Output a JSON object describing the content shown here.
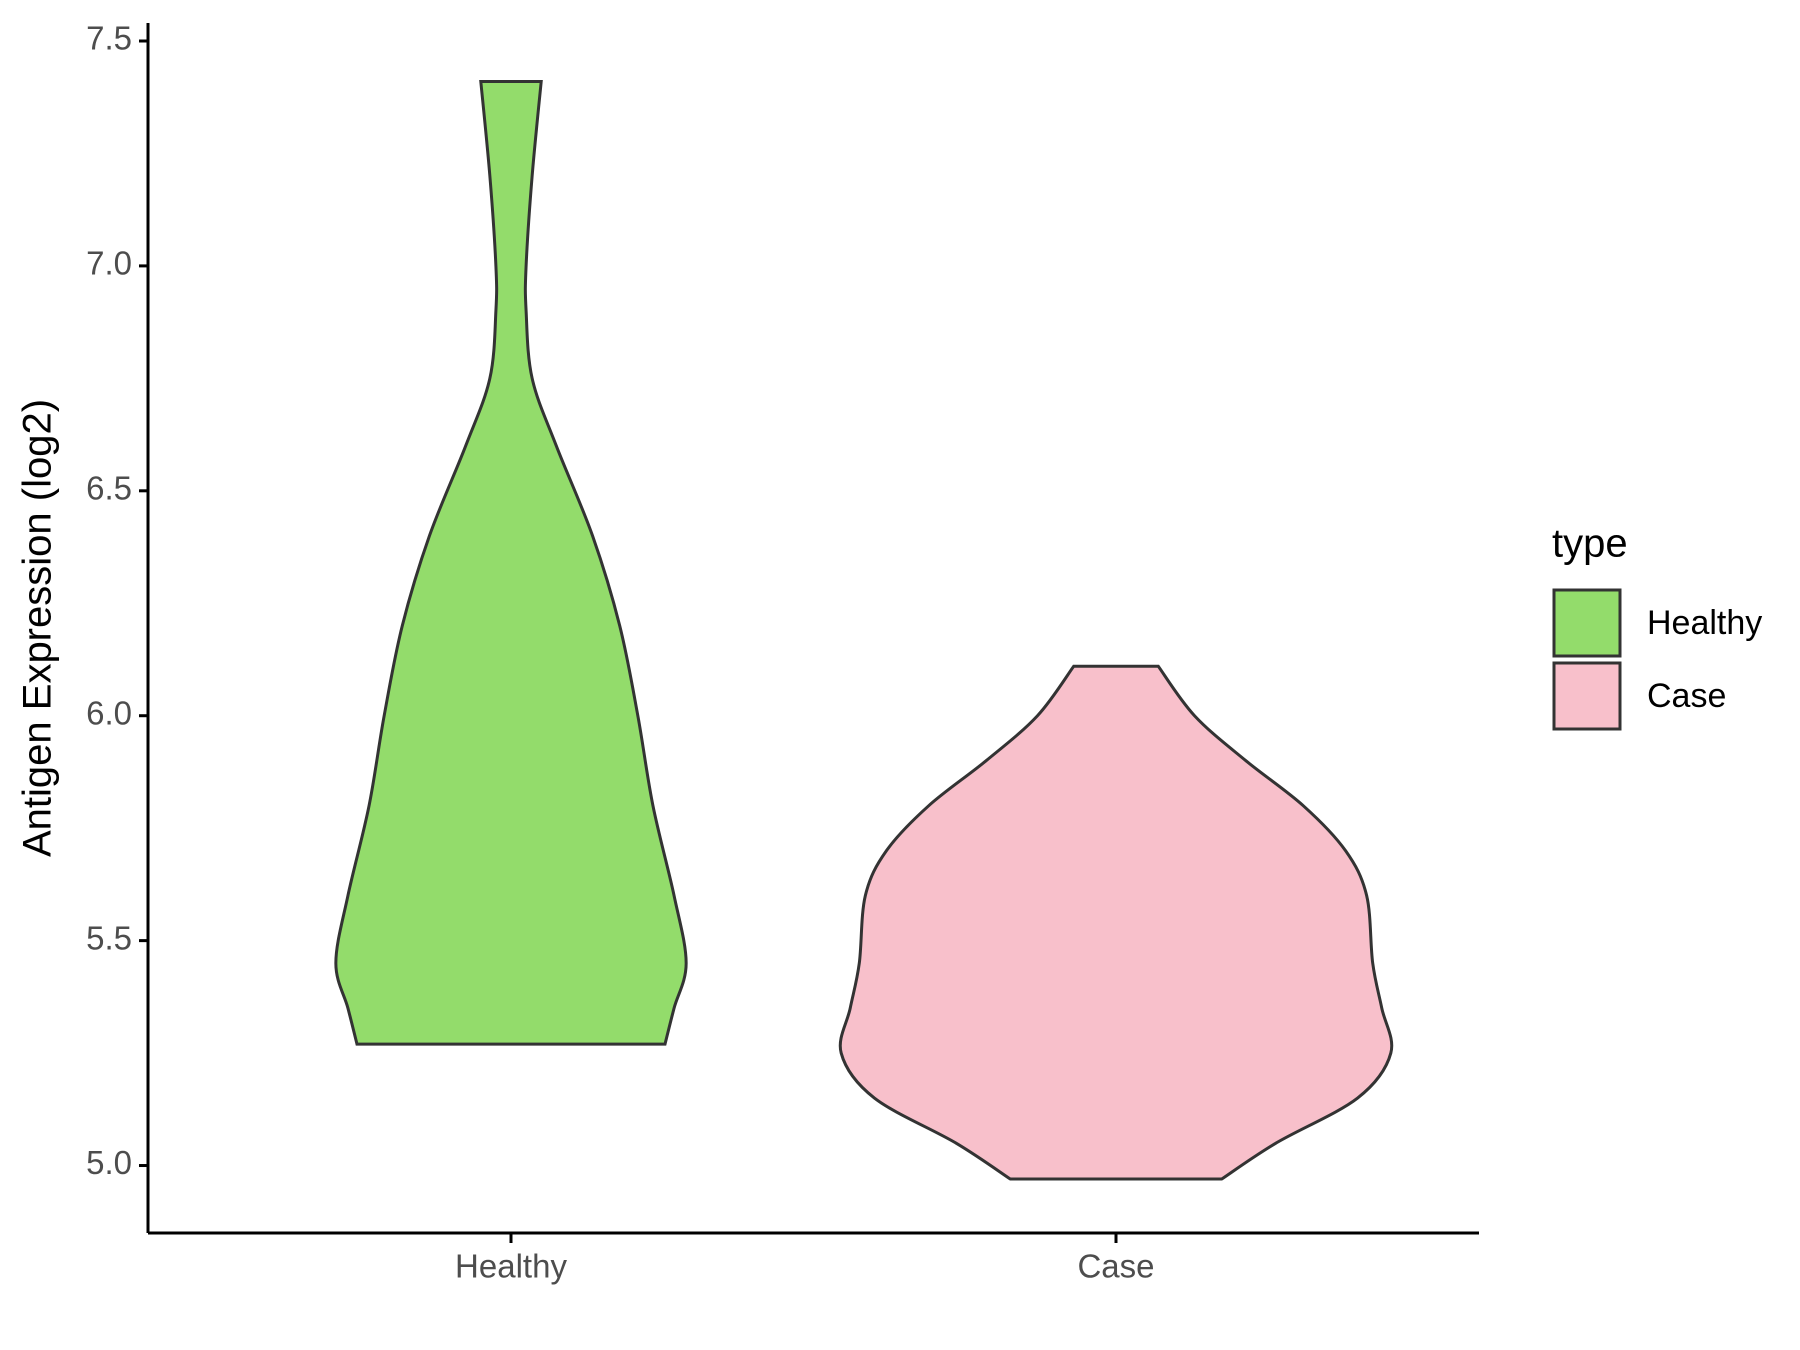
{
  "chart_data": {
    "type": "violin",
    "y_label": "Antigen Expression (log2)",
    "categories": [
      "Healthy",
      "Case"
    ],
    "legend_title": "type",
    "legend_position": "right",
    "ylim": [
      4.85,
      7.54
    ],
    "yticks": [
      {
        "value": 5,
        "label": "5.0"
      },
      5.5,
      {
        "value": 6,
        "label": "6.0"
      },
      6.5,
      {
        "value": 7,
        "label": "7.0"
      },
      7.5
    ],
    "series": [
      {
        "name": "Healthy",
        "color": "#93dc6b",
        "y": [
          7.41,
          7.2,
          7.0,
          6.9,
          6.75,
          6.6,
          6.4,
          6.2,
          6.0,
          5.8,
          5.6,
          5.45,
          5.35,
          5.27
        ],
        "width": [
          0.1,
          0.07,
          0.05,
          0.05,
          0.07,
          0.15,
          0.27,
          0.36,
          0.42,
          0.47,
          0.54,
          0.58,
          0.54,
          0.51
        ]
      },
      {
        "name": "Case",
        "color": "#f8c0cb",
        "y": [
          6.11,
          6.0,
          5.9,
          5.8,
          5.7,
          5.6,
          5.45,
          5.35,
          5.25,
          5.15,
          5.05,
          4.97
        ],
        "width": [
          0.14,
          0.26,
          0.43,
          0.62,
          0.76,
          0.83,
          0.85,
          0.88,
          0.91,
          0.8,
          0.53,
          0.35
        ]
      }
    ]
  }
}
